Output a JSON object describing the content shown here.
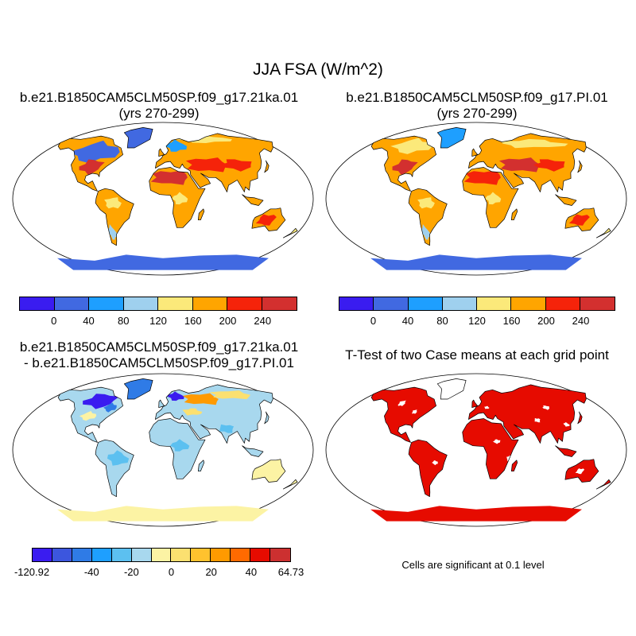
{
  "figure_title": "JJA FSA (W/m^2)",
  "panels": [
    {
      "id": "case1",
      "title_line1": "b.e21.B1850CAM5CLM50SP.f09_g17.21ka.01",
      "title_line2": "(yrs 270-299)"
    },
    {
      "id": "case2",
      "title_line1": "b.e21.B1850CAM5CLM50SP.f09_g17.PI.01",
      "title_line2": "(yrs 270-299)"
    },
    {
      "id": "diff",
      "title_line1": "b.e21.B1850CAM5CLM50SP.f09_g17.21ka.01",
      "title_line2": "- b.e21.B1850CAM5CLM50SP.f09_g17.PI.01"
    },
    {
      "id": "ttest",
      "title_line1": "T-Test of two Case means at each grid point"
    }
  ],
  "colorbars": {
    "absolute": {
      "colors": [
        "#3a1cf0",
        "#4169e1",
        "#1e9fff",
        "#9fd0ee",
        "#fbe97a",
        "#ffa500",
        "#f5230a",
        "#d3302f"
      ],
      "labels": [
        "0",
        "40",
        "80",
        "120",
        "160",
        "200",
        "240"
      ]
    },
    "difference": {
      "colors": [
        "#3a1cf0",
        "#3c56de",
        "#2f7be6",
        "#1e9fff",
        "#5cc0f0",
        "#a8d8ee",
        "#fcf3a4",
        "#fbe070",
        "#ffc22e",
        "#ff9a00",
        "#ff6a00",
        "#e60b00",
        "#cc3030"
      ],
      "labels": [
        "-120.92",
        "-40",
        "-20",
        "0",
        "20",
        "40",
        "64.73"
      ]
    }
  },
  "significance_note": "Cells are significant at 0.1 level",
  "colors": {
    "ocean": "#ffffff",
    "coastline": "#000000",
    "significant": "#e60b00"
  }
}
